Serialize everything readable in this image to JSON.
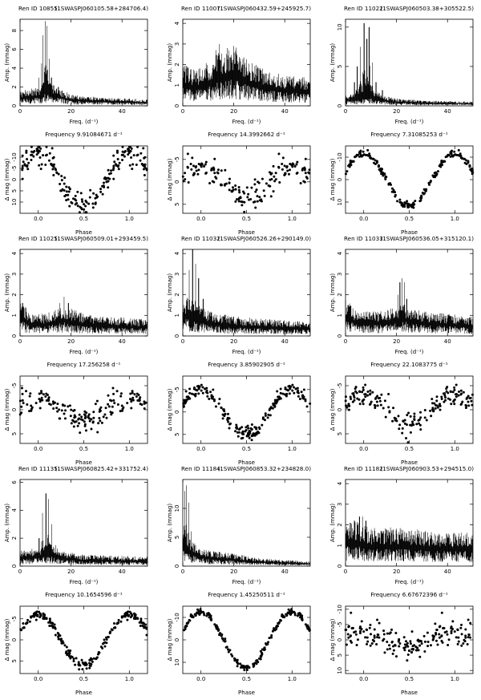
{
  "colors": {
    "ink": "#000000",
    "background": "#ffffff"
  },
  "chart_data": [
    {
      "id": "ren-10855",
      "title_id": "Ren ID 10855",
      "title_coord": "(1SWASPJ060105.58+284706.4)",
      "periodogram": {
        "type": "line",
        "xlabel": "Freq. (d⁻¹)",
        "ylabel": "Amp. (mmag)",
        "xlim": [
          0,
          50
        ],
        "ylim": [
          0,
          9.2
        ],
        "xticks": [
          "0",
          "20",
          "40"
        ],
        "yticks": [
          "0",
          "2",
          "4",
          "6",
          "8"
        ],
        "noise": [
          [
            0,
            1.2
          ],
          [
            8,
            1.5
          ],
          [
            10,
            2.2
          ],
          [
            14,
            1.5
          ],
          [
            20,
            0.9
          ],
          [
            30,
            0.7
          ],
          [
            50,
            0.5
          ]
        ],
        "peaks": [
          [
            7.4,
            3.0
          ],
          [
            8.5,
            4.5
          ],
          [
            9.0,
            7.5
          ],
          [
            9.91,
            9.0
          ],
          [
            10.6,
            8.5
          ],
          [
            11.5,
            5.0
          ],
          [
            12.3,
            3.0
          ],
          [
            15.0,
            2.0
          ]
        ]
      },
      "frequency_label": "Frequency 9.91084671 d⁻¹",
      "phase": {
        "type": "scatter",
        "xlabel": "Phase",
        "ylabel": "Δ mag (mmag)",
        "xlim": [
          -0.2,
          1.2
        ],
        "ylim": [
          15,
          -15
        ],
        "xticks": [
          "0.0",
          "0.5",
          "1.0"
        ],
        "yticks": [
          "-10",
          "-5",
          "0",
          "5",
          "10"
        ],
        "amplitude": 12,
        "scatter": 4.5,
        "shape": "sine",
        "n_points": 140
      }
    },
    {
      "id": "ren-11007",
      "title_id": "Ren ID 11007",
      "title_coord": "(1SWASPJ060432.59+245925.7)",
      "periodogram": {
        "type": "line",
        "xlabel": "Freq. (d⁻¹)",
        "ylabel": "Amp. (mmag)",
        "xlim": [
          0,
          50
        ],
        "ylim": [
          0,
          4.2
        ],
        "xticks": [
          "0",
          "20",
          "40"
        ],
        "yticks": [
          "0",
          "1",
          "2",
          "3",
          "4"
        ],
        "noise": [
          [
            0,
            1.5
          ],
          [
            5,
            1.3
          ],
          [
            10,
            1.6
          ],
          [
            15,
            2.0
          ],
          [
            20,
            2.2
          ],
          [
            25,
            1.7
          ],
          [
            30,
            1.4
          ],
          [
            40,
            1.1
          ],
          [
            50,
            1.0
          ]
        ],
        "peaks": [
          [
            13.0,
            2.7
          ],
          [
            14.4,
            3.0
          ],
          [
            18.0,
            2.7
          ],
          [
            20.0,
            2.9
          ],
          [
            22.5,
            2.3
          ]
        ]
      },
      "frequency_label": "Frequency 14.3992662 d⁻¹",
      "phase": {
        "type": "scatter",
        "xlabel": "Phase",
        "ylabel": "Δ mag (mmag)",
        "xlim": [
          -0.2,
          1.2
        ],
        "ylim": [
          7,
          -8
        ],
        "xticks": [
          "0.0",
          "0.5",
          "1.0"
        ],
        "yticks": [
          "-5",
          "0",
          "5"
        ],
        "amplitude": 3.5,
        "scatter": 2.5,
        "shape": "sine",
        "n_points": 120
      }
    },
    {
      "id": "ren-11022",
      "title_id": "Ren ID 11022",
      "title_coord": "(1SWASPJ060503.38+305522.5)",
      "periodogram": {
        "type": "line",
        "xlabel": "Freq. (d⁻¹)",
        "ylabel": "Amp. (mmag)",
        "xlim": [
          0,
          50
        ],
        "ylim": [
          0,
          11
        ],
        "xticks": [
          "0",
          "20",
          "40"
        ],
        "yticks": [
          "0",
          "5",
          "10"
        ],
        "noise": [
          [
            0,
            1.0
          ],
          [
            5,
            1.3
          ],
          [
            10,
            1.6
          ],
          [
            15,
            1.0
          ],
          [
            20,
            0.7
          ],
          [
            30,
            0.5
          ],
          [
            50,
            0.4
          ]
        ],
        "peaks": [
          [
            3.5,
            3.0
          ],
          [
            4.6,
            5.0
          ],
          [
            5.8,
            7.5
          ],
          [
            7.3,
            10.5
          ],
          [
            8.4,
            8.5
          ],
          [
            9.3,
            10.0
          ],
          [
            10.6,
            5.5
          ],
          [
            12.0,
            3.0
          ],
          [
            14.5,
            2.0
          ]
        ]
      },
      "frequency_label": "Frequency 7.31085253 d⁻¹",
      "phase": {
        "type": "scatter",
        "xlabel": "Phase",
        "ylabel": "Δ mag (mmag)",
        "xlim": [
          -0.2,
          1.2
        ],
        "ylim": [
          15,
          -15
        ],
        "xticks": [
          "0.0",
          "0.5",
          "1.0"
        ],
        "yticks": [
          "-10",
          "0",
          "10"
        ],
        "amplitude": 11.5,
        "scatter": 1.3,
        "shape": "sine",
        "n_points": 150
      }
    },
    {
      "id": "ren-11025",
      "title_id": "Ren ID 11025",
      "title_coord": "(1SWASPJ060509.01+293459.5)",
      "periodogram": {
        "type": "line",
        "xlabel": "Freq. (d⁻¹)",
        "ylabel": "Amp. (mmag)",
        "xlim": [
          0,
          50
        ],
        "ylim": [
          0,
          4.2
        ],
        "xticks": [
          "0",
          "20",
          "40"
        ],
        "yticks": [
          "0",
          "1",
          "2",
          "3",
          "4"
        ],
        "noise": [
          [
            0,
            1.3
          ],
          [
            5,
            0.8
          ],
          [
            10,
            0.8
          ],
          [
            17,
            1.1
          ],
          [
            25,
            0.8
          ],
          [
            35,
            0.7
          ],
          [
            50,
            0.6
          ]
        ],
        "peaks": [
          [
            1.0,
            1.6
          ],
          [
            15.5,
            1.6
          ],
          [
            17.26,
            1.9
          ],
          [
            19.0,
            1.6
          ]
        ]
      },
      "frequency_label": "Frequency 17.256258 d⁻¹",
      "phase": {
        "type": "scatter",
        "xlabel": "Phase",
        "ylabel": "Δ mag (mmag)",
        "xlim": [
          -0.2,
          1.2
        ],
        "ylim": [
          7,
          -7
        ],
        "xticks": [
          "0.0",
          "0.5",
          "1.0"
        ],
        "yticks": [
          "-5",
          "0",
          "5"
        ],
        "amplitude": 2.0,
        "scatter": 2.2,
        "shape": "sine",
        "n_points": 120
      }
    },
    {
      "id": "ren-11032",
      "title_id": "Ren ID 11032",
      "title_coord": "(1SWASPJ060526.26+290149.0)",
      "periodogram": {
        "type": "line",
        "xlabel": "Freq. (d⁻¹)",
        "ylabel": "Amp. (mmag)",
        "xlim": [
          0,
          50
        ],
        "ylim": [
          0,
          4.2
        ],
        "xticks": [
          "0",
          "20",
          "40"
        ],
        "yticks": [
          "0",
          "1",
          "2",
          "3",
          "4"
        ],
        "noise": [
          [
            0,
            1.5
          ],
          [
            5,
            1.2
          ],
          [
            10,
            0.9
          ],
          [
            20,
            0.7
          ],
          [
            35,
            0.6
          ],
          [
            50,
            0.5
          ]
        ],
        "peaks": [
          [
            2.5,
            3.2
          ],
          [
            3.86,
            4.3
          ],
          [
            5.0,
            3.5
          ],
          [
            6.2,
            2.8
          ],
          [
            8.0,
            1.8
          ]
        ]
      },
      "frequency_label": "Frequency 3.85902905 d⁻¹",
      "phase": {
        "type": "scatter",
        "xlabel": "Phase",
        "ylabel": "Δ mag (mmag)",
        "xlim": [
          -0.2,
          1.2
        ],
        "ylim": [
          7,
          -8
        ],
        "xticks": [
          "0.0",
          "0.5",
          "1.0"
        ],
        "yticks": [
          "-5",
          "0",
          "5"
        ],
        "amplitude": 5.0,
        "scatter": 1.3,
        "shape": "sine",
        "n_points": 150
      }
    },
    {
      "id": "ren-11033",
      "title_id": "Ren ID 11033",
      "title_coord": "(1SWASPJ060536.05+315120.1)",
      "periodogram": {
        "type": "line",
        "xlabel": "Freq. (d⁻¹)",
        "ylabel": "Amp. (mmag)",
        "xlim": [
          0,
          50
        ],
        "ylim": [
          0,
          4.2
        ],
        "xticks": [
          "0",
          "20",
          "40"
        ],
        "yticks": [
          "0",
          "1",
          "2",
          "3",
          "4"
        ],
        "noise": [
          [
            0,
            1.3
          ],
          [
            5,
            0.9
          ],
          [
            15,
            0.9
          ],
          [
            22,
            1.2
          ],
          [
            30,
            0.9
          ],
          [
            40,
            0.8
          ],
          [
            50,
            0.7
          ]
        ],
        "peaks": [
          [
            1.0,
            1.5
          ],
          [
            20.5,
            2.0
          ],
          [
            21.3,
            2.6
          ],
          [
            22.1,
            2.8
          ],
          [
            23.0,
            2.6
          ],
          [
            24.0,
            1.8
          ]
        ]
      },
      "frequency_label": "Frequency 22.1083775 d⁻¹",
      "phase": {
        "type": "scatter",
        "xlabel": "Phase",
        "ylabel": "Δ mag (mmag)",
        "xlim": [
          -0.2,
          1.2
        ],
        "ylim": [
          7,
          -7
        ],
        "xticks": [
          "0.0",
          "0.5",
          "1.0"
        ],
        "yticks": [
          "-5",
          "0",
          "5"
        ],
        "amplitude": 3.0,
        "scatter": 2.0,
        "shape": "sine",
        "n_points": 120
      }
    },
    {
      "id": "ren-11135",
      "title_id": "Ren ID 11135",
      "title_coord": "(1SWASPJ060825.42+331752.4)",
      "periodogram": {
        "type": "line",
        "xlabel": "Freq. (d⁻¹)",
        "ylabel": "Amp. (mmag)",
        "xlim": [
          0,
          50
        ],
        "ylim": [
          0,
          6.2
        ],
        "xticks": [
          "0",
          "20",
          "40"
        ],
        "yticks": [
          "0",
          "2",
          "4",
          "6"
        ],
        "noise": [
          [
            0,
            0.8
          ],
          [
            8,
            1.0
          ],
          [
            11,
            1.3
          ],
          [
            16,
            0.8
          ],
          [
            25,
            0.6
          ],
          [
            50,
            0.5
          ]
        ],
        "peaks": [
          [
            7.5,
            2.0
          ],
          [
            8.8,
            3.8
          ],
          [
            10.17,
            5.2
          ],
          [
            11.2,
            4.8
          ],
          [
            12.4,
            3.0
          ],
          [
            14.0,
            1.5
          ]
        ]
      },
      "frequency_label": "Frequency 10.1654596 d⁻¹",
      "phase": {
        "type": "scatter",
        "xlabel": "Phase",
        "ylabel": "Δ mag (mmag)",
        "xlim": [
          -0.2,
          1.2
        ],
        "ylim": [
          8,
          -8
        ],
        "xticks": [
          "0.0",
          "0.5",
          "1.0"
        ],
        "yticks": [
          "-5",
          "0",
          "5"
        ],
        "amplitude": 6.0,
        "scatter": 0.9,
        "shape": "sine",
        "n_points": 150
      }
    },
    {
      "id": "ren-11184",
      "title_id": "Ren ID 11184",
      "title_coord": "(1SWASPJ060853.32+234828.0)",
      "periodogram": {
        "type": "line",
        "xlabel": "Freq. (d⁻¹)",
        "ylabel": "Amp. (mmag)",
        "xlim": [
          0,
          50
        ],
        "ylim": [
          0,
          15
        ],
        "xticks": [
          "0",
          "20",
          "40"
        ],
        "yticks": [
          "0",
          "5",
          "10"
        ],
        "noise": [
          [
            0,
            5.0
          ],
          [
            3,
            3.5
          ],
          [
            6,
            2.5
          ],
          [
            10,
            2.0
          ],
          [
            15,
            1.8
          ],
          [
            20,
            1.6
          ],
          [
            30,
            1.0
          ],
          [
            40,
            0.8
          ],
          [
            50,
            0.6
          ]
        ],
        "peaks": [
          [
            0.7,
            13.0
          ],
          [
            1.45,
            14.0
          ],
          [
            2.3,
            11.0
          ],
          [
            3.2,
            6.0
          ]
        ]
      },
      "frequency_label": "Frequency 1.45250511 d⁻¹",
      "phase": {
        "type": "scatter",
        "xlabel": "Phase",
        "ylabel": "Δ mag (mmag)",
        "xlim": [
          -0.2,
          1.2
        ],
        "ylim": [
          15,
          -15
        ],
        "xticks": [
          "0.0",
          "0.5",
          "1.0"
        ],
        "yticks": [
          "-10",
          "0",
          "10"
        ],
        "amplitude": 12.5,
        "scatter": 1.2,
        "shape": "sine",
        "n_points": 150
      }
    },
    {
      "id": "ren-11182",
      "title_id": "Ren ID 11182",
      "title_coord": "(1SWASPJ060903.53+294515.0)",
      "periodogram": {
        "type": "line",
        "xlabel": "Freq. (d⁻¹)",
        "ylabel": "Amp. (mmag)",
        "xlim": [
          0,
          50
        ],
        "ylim": [
          0,
          4.2
        ],
        "xticks": [
          "0",
          "20",
          "40"
        ],
        "yticks": [
          "0",
          "1",
          "2",
          "3",
          "4"
        ],
        "noise": [
          [
            0,
            1.6
          ],
          [
            5,
            1.6
          ],
          [
            10,
            1.4
          ],
          [
            20,
            1.4
          ],
          [
            30,
            1.3
          ],
          [
            40,
            1.2
          ],
          [
            50,
            1.2
          ]
        ],
        "peaks": [
          [
            2.0,
            2.1
          ],
          [
            3.5,
            2.2
          ],
          [
            5.5,
            2.4
          ],
          [
            6.68,
            2.4
          ],
          [
            8.0,
            2.2
          ]
        ]
      },
      "frequency_label": "Frequency 6.67672396 d⁻¹",
      "phase": {
        "type": "scatter",
        "xlabel": "Phase",
        "ylabel": "Δ mag (mmag)",
        "xlim": [
          -0.2,
          1.2
        ],
        "ylim": [
          11,
          -11
        ],
        "xticks": [
          "0.0",
          "0.5",
          "1.0"
        ],
        "yticks": [
          "-10",
          "-5",
          "0",
          "5",
          "10"
        ],
        "amplitude": 2.5,
        "scatter": 4.0,
        "shape": "sine",
        "n_points": 130
      }
    }
  ]
}
